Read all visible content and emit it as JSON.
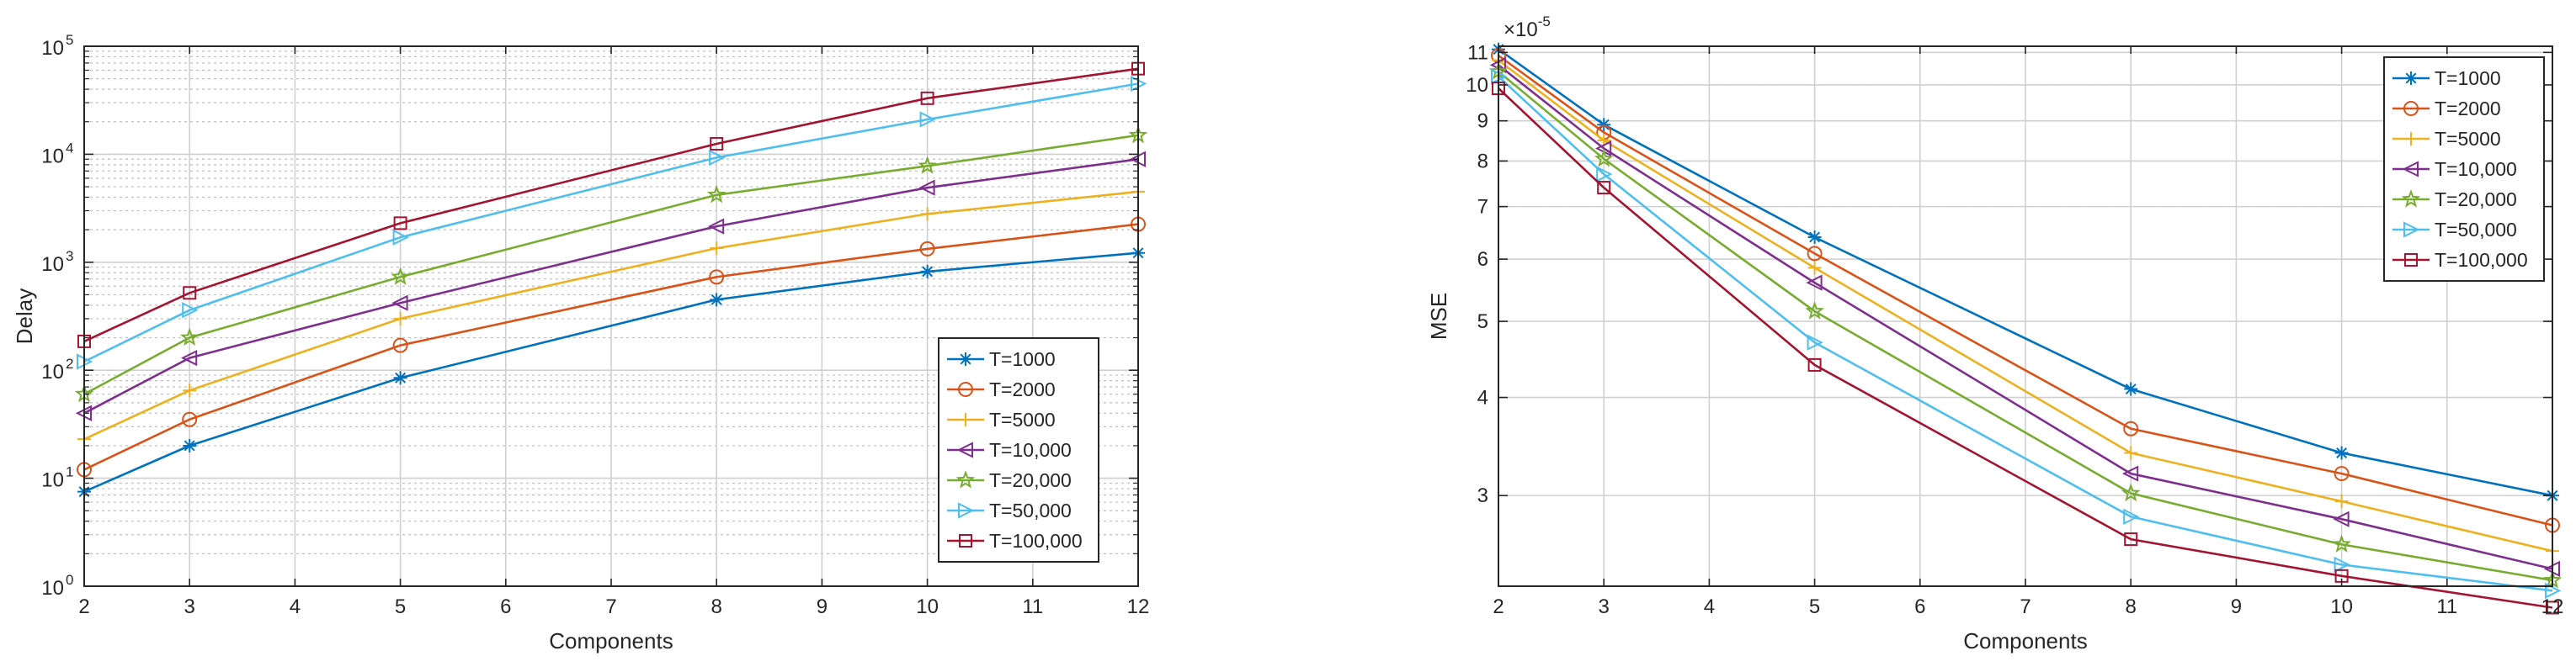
{
  "chart_data": [
    {
      "type": "line",
      "yscale": "log",
      "title": "",
      "xlabel": "Components",
      "ylabel": "Delay",
      "xlim": [
        2,
        12
      ],
      "ylim": [
        1,
        100000
      ],
      "grid": true,
      "legend_position": "bottom-right",
      "xticks": [
        "2",
        "3",
        "4",
        "5",
        "6",
        "7",
        "8",
        "9",
        "10",
        "11",
        "12"
      ],
      "yticks": [
        {
          "value": 1,
          "base": "10",
          "exp": "0"
        },
        {
          "value": 10,
          "base": "10",
          "exp": "1"
        },
        {
          "value": 100,
          "base": "10",
          "exp": "2"
        },
        {
          "value": 1000,
          "base": "10",
          "exp": "3"
        },
        {
          "value": 10000,
          "base": "10",
          "exp": "4"
        },
        {
          "value": 100000,
          "base": "10",
          "exp": "5"
        }
      ],
      "x": [
        2,
        3,
        5,
        8,
        10,
        12
      ],
      "series": [
        {
          "name": "T=1000",
          "color": "#0072BD",
          "marker": "asterisk",
          "values": [
            7.5,
            20,
            85,
            450,
            820,
            1220
          ]
        },
        {
          "name": "T=2000",
          "color": "#D95319",
          "marker": "circle",
          "values": [
            12,
            35,
            170,
            730,
            1330,
            2250
          ]
        },
        {
          "name": "T=5000",
          "color": "#EDB120",
          "marker": "plus",
          "values": [
            23,
            65,
            300,
            1350,
            2800,
            4500
          ]
        },
        {
          "name": "T=10,000",
          "color": "#7E2F8E",
          "marker": "triangle-left",
          "values": [
            40,
            130,
            420,
            2150,
            4900,
            9000
          ]
        },
        {
          "name": "T=20,000",
          "color": "#77AC30",
          "marker": "pentagram",
          "values": [
            60,
            200,
            730,
            4200,
            7800,
            15000
          ]
        },
        {
          "name": "T=50,000",
          "color": "#4DBEEE",
          "marker": "triangle-right",
          "values": [
            120,
            360,
            1700,
            9300,
            21000,
            45000
          ]
        },
        {
          "name": "T=100,000",
          "color": "#A2142F",
          "marker": "square",
          "values": [
            185,
            520,
            2300,
            12500,
            33000,
            62000
          ]
        }
      ]
    },
    {
      "type": "line",
      "yscale": "log",
      "title": "",
      "xlabel": "Components",
      "ylabel": "MSE",
      "exponent_label": {
        "base": "×10",
        "exp": "-5"
      },
      "xlim": [
        2,
        12
      ],
      "ylim": [
        2.3,
        11.2
      ],
      "grid": true,
      "legend_position": "top-right",
      "xticks": [
        "2",
        "3",
        "4",
        "5",
        "6",
        "7",
        "8",
        "9",
        "10",
        "11",
        "12"
      ],
      "yticks": [
        {
          "value": 3,
          "label": "3"
        },
        {
          "value": 4,
          "label": "4"
        },
        {
          "value": 5,
          "label": "5"
        },
        {
          "value": 6,
          "label": "6"
        },
        {
          "value": 7,
          "label": "7"
        },
        {
          "value": 8,
          "label": "8"
        },
        {
          "value": 9,
          "label": "9"
        },
        {
          "value": 10,
          "label": "10"
        },
        {
          "value": 11,
          "label": "11"
        }
      ],
      "x": [
        2,
        3,
        5,
        8,
        10,
        12
      ],
      "series": [
        {
          "name": "T=1000",
          "color": "#0072BD",
          "marker": "asterisk",
          "values": [
            11.1,
            8.9,
            6.4,
            4.1,
            3.4,
            3.0
          ]
        },
        {
          "name": "T=2000",
          "color": "#D95319",
          "marker": "circle",
          "values": [
            10.9,
            8.7,
            6.1,
            3.65,
            3.2,
            2.75
          ]
        },
        {
          "name": "T=5000",
          "color": "#EDB120",
          "marker": "plus",
          "values": [
            10.75,
            8.5,
            5.85,
            3.4,
            2.95,
            2.55
          ]
        },
        {
          "name": "T=10,000",
          "color": "#7E2F8E",
          "marker": "triangle-left",
          "values": [
            10.6,
            8.3,
            5.6,
            3.2,
            2.8,
            2.42
          ]
        },
        {
          "name": "T=20,000",
          "color": "#77AC30",
          "marker": "pentagram",
          "values": [
            10.4,
            8.05,
            5.15,
            3.02,
            2.6,
            2.34
          ]
        },
        {
          "name": "T=50,000",
          "color": "#4DBEEE",
          "marker": "triangle-right",
          "values": [
            10.25,
            7.7,
            4.7,
            2.82,
            2.45,
            2.27
          ]
        },
        {
          "name": "T=100,000",
          "color": "#A2142F",
          "marker": "square",
          "values": [
            9.9,
            7.4,
            4.4,
            2.64,
            2.37,
            2.16
          ]
        }
      ]
    }
  ]
}
